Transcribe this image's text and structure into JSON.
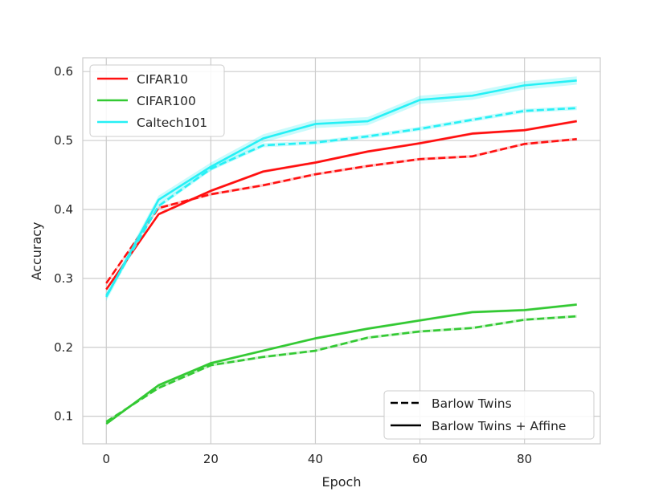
{
  "chart_data": {
    "type": "line",
    "title": "",
    "xlabel": "Epoch",
    "ylabel": "Accuracy",
    "xlim": [
      -4.5,
      94.5
    ],
    "ylim": [
      0.06,
      0.62
    ],
    "x_ticks": [
      "0",
      "20",
      "40",
      "60",
      "80"
    ],
    "y_ticks": [
      "0.1",
      "0.2",
      "0.3",
      "0.4",
      "0.5",
      "0.6"
    ],
    "grid": true,
    "x": [
      0,
      10,
      20,
      30,
      40,
      50,
      60,
      70,
      80,
      90
    ],
    "datasets": [
      {
        "name": "CIFAR10",
        "color": "#ff1010"
      },
      {
        "name": "CIFAR100",
        "color": "#33c933"
      },
      {
        "name": "Caltech101",
        "color": "#26f0f5"
      }
    ],
    "methods": [
      {
        "name": "Barlow Twins",
        "style": "dashed"
      },
      {
        "name": "Barlow Twins + Affine",
        "style": "solid"
      }
    ],
    "dataset_legend_location": "upper left",
    "method_legend_location": "lower right",
    "series": [
      {
        "dataset": "CIFAR10",
        "method": "Barlow Twins",
        "values": [
          0.293,
          0.402,
          0.422,
          0.435,
          0.451,
          0.463,
          0.473,
          0.477,
          0.495,
          0.502
        ],
        "band": 0.002
      },
      {
        "dataset": "CIFAR10",
        "method": "Barlow Twins + Affine",
        "values": [
          0.284,
          0.393,
          0.427,
          0.455,
          0.468,
          0.484,
          0.496,
          0.51,
          0.515,
          0.528
        ],
        "band": 0.002
      },
      {
        "dataset": "CIFAR100",
        "method": "Barlow Twins",
        "values": [
          0.092,
          0.141,
          0.174,
          0.186,
          0.195,
          0.214,
          0.223,
          0.228,
          0.24,
          0.245
        ],
        "band": 0.002
      },
      {
        "dataset": "CIFAR100",
        "method": "Barlow Twins + Affine",
        "values": [
          0.089,
          0.145,
          0.177,
          0.195,
          0.213,
          0.227,
          0.239,
          0.251,
          0.254,
          0.262
        ],
        "band": 0.002
      },
      {
        "dataset": "Caltech101",
        "method": "Barlow Twins",
        "values": [
          0.275,
          0.405,
          0.459,
          0.493,
          0.497,
          0.506,
          0.517,
          0.53,
          0.543,
          0.547
        ],
        "band": 0.003
      },
      {
        "dataset": "Caltech101",
        "method": "Barlow Twins + Affine",
        "values": [
          0.273,
          0.414,
          0.462,
          0.503,
          0.524,
          0.528,
          0.559,
          0.565,
          0.58,
          0.587
        ],
        "band": 0.006
      }
    ]
  }
}
